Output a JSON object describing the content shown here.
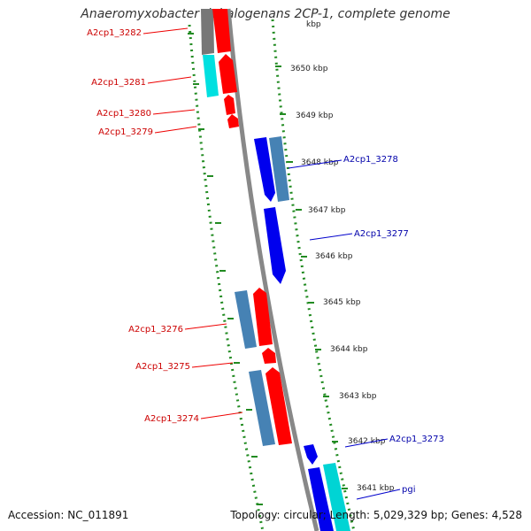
{
  "title": "Anaeromyxobacter dehalogenans 2CP-1, complete genome",
  "footer": {
    "accession": "Accession: NC_011891",
    "topology": "Topology: circular; Length: 5,029,329 bp; Genes: 4,528"
  },
  "colors": {
    "forward_gene": "#ff0000",
    "reverse_gene": "#0000ee",
    "forward_cds": "#4682b4",
    "reverse_cds": "#4682b4",
    "other_feature": "#00d4d4",
    "backbone": "#888888",
    "ticks": "#228b22",
    "label_forward": "#cc0000",
    "label_reverse": "#0000aa"
  },
  "scale_labels": [
    "3650 kbp",
    "3649 kbp",
    "3648 kbp",
    "3647 kbp",
    "3646 kbp",
    "3645 kbp",
    "3644 kbp",
    "3643 kbp",
    "3642 kbp",
    "3641 kbp"
  ],
  "scale_label_cut_top": "kbp",
  "genes_left": [
    {
      "label": "A2cp1_3282",
      "strand": "forward"
    },
    {
      "label": "A2cp1_3281",
      "strand": "forward"
    },
    {
      "label": "A2cp1_3280",
      "strand": "forward"
    },
    {
      "label": "A2cp1_3279",
      "strand": "forward"
    },
    {
      "label": "A2cp1_3276",
      "strand": "forward"
    },
    {
      "label": "A2cp1_3275",
      "strand": "forward"
    },
    {
      "label": "A2cp1_3274",
      "strand": "forward"
    }
  ],
  "genes_right": [
    {
      "label": "A2cp1_3278",
      "strand": "reverse"
    },
    {
      "label": "A2cp1_3277",
      "strand": "reverse"
    },
    {
      "label": "A2cp1_3273",
      "strand": "reverse"
    },
    {
      "label": "pgi",
      "strand": "reverse"
    }
  ]
}
